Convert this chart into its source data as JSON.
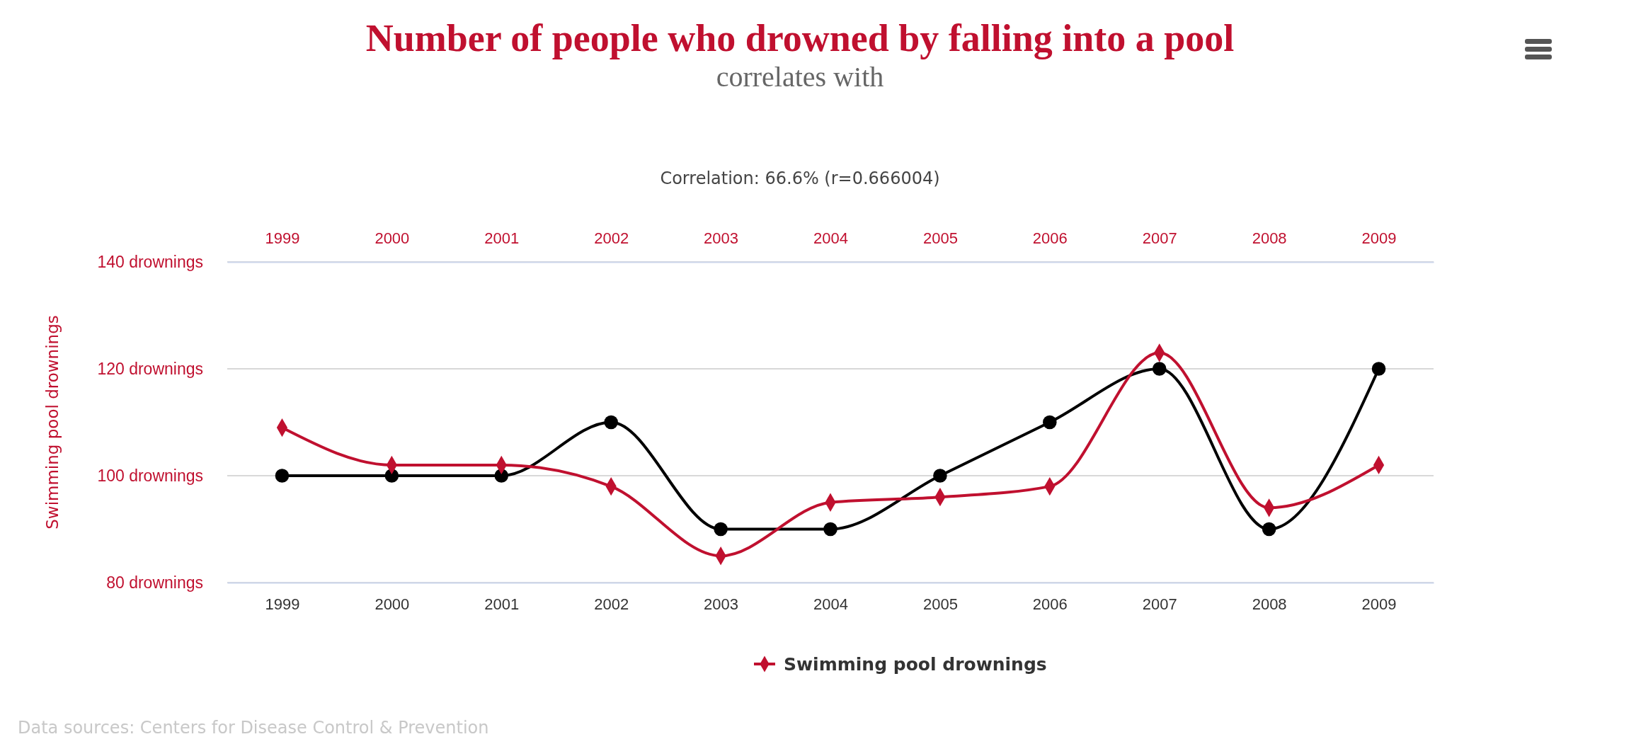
{
  "chart_data": {
    "type": "line",
    "title": "Number of people who drowned by falling into a pool",
    "subtitle": "correlates with",
    "annotations": [
      "Correlation: 66.6% (r=0.666004)",
      "Data sources: Centers for Disease Control & Prevention"
    ],
    "ylabel": "Swimming pool drownings",
    "x": [
      1999,
      2000,
      2001,
      2002,
      2003,
      2004,
      2005,
      2006,
      2007,
      2008,
      2009
    ],
    "xlim": [
      1998.5,
      2009.5
    ],
    "xticks": [
      1999,
      2000,
      2001,
      2002,
      2003,
      2004,
      2005,
      2006,
      2007,
      2008,
      2009
    ],
    "x2lim": [
      1998.5,
      2009.5
    ],
    "x2ticks": [
      1999,
      2000,
      2001,
      2002,
      2003,
      2004,
      2005,
      2006,
      2007,
      2008,
      2009
    ],
    "ylim": [
      80,
      140
    ],
    "yticks": [
      {
        "value": 80,
        "label": "80 drownings"
      },
      {
        "value": 100,
        "label": "100 drownings"
      },
      {
        "value": 120,
        "label": "120 drownings"
      },
      {
        "value": 140,
        "label": "140 drownings"
      }
    ],
    "grid": "y",
    "legend": "bottom",
    "series": [
      {
        "color": "#000000",
        "marker": "circle",
        "values": [
          100,
          100,
          100,
          110,
          90,
          90,
          100,
          110,
          120,
          90,
          120
        ]
      },
      {
        "name": "Swimming pool drownings",
        "color": "#c0102f",
        "marker": "diamond",
        "values": [
          109,
          102,
          102,
          98,
          85,
          95,
          96,
          98,
          123,
          94,
          102
        ]
      }
    ]
  }
}
